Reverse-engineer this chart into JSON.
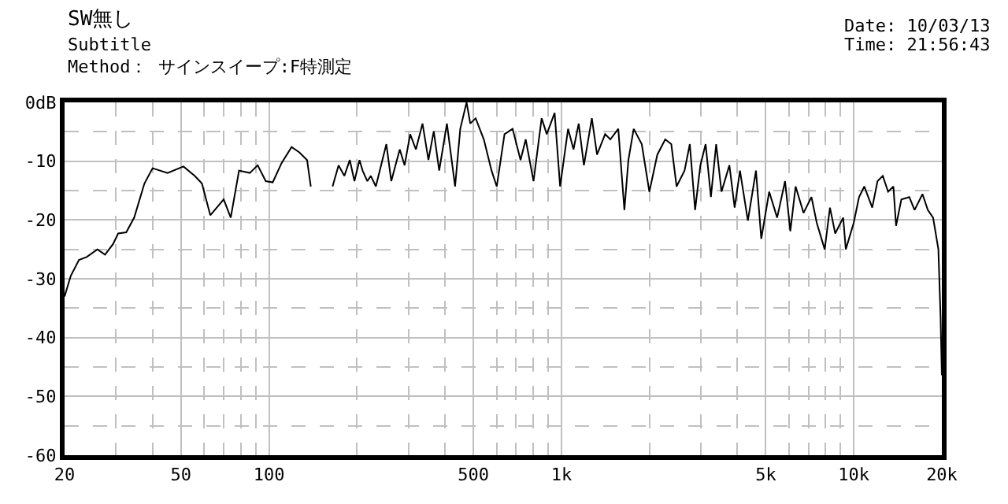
{
  "chart_data": {
    "type": "line",
    "title": "SW無し",
    "subtitle": "Subtitle",
    "annotations": [
      "Method： サインスイープ:F特測定",
      "Date: 10/03/13",
      "Time: 21:56:43"
    ],
    "x": [
      20,
      21,
      22.4,
      23.8,
      25.9,
      27.5,
      29.3,
      30.5,
      32.5,
      34.6,
      37.5,
      40,
      45,
      51,
      55.7,
      59,
      63,
      70,
      74,
      79,
      86,
      91.5,
      97.5,
      103,
      110.5,
      119.5,
      127,
      135,
      139,
      152,
      165,
      173,
      181,
      189,
      196,
      204,
      209,
      217,
      223,
      232,
      252,
      262,
      280,
      291,
      304,
      318,
      335,
      351,
      366,
      382,
      406,
      433,
      451,
      474,
      488,
      509,
      543,
      577,
      601,
      639,
      681,
      725,
      755,
      803,
      856,
      891,
      948,
      990,
      1054,
      1100,
      1146,
      1194,
      1271,
      1324,
      1411,
      1470,
      1565,
      1642,
      1695,
      1767,
      1883,
      1999,
      2128,
      2265,
      2376,
      2477,
      2637,
      2749,
      2866,
      2987,
      3113,
      3246,
      3383,
      3527,
      3754,
      3913,
      4080,
      4342,
      4628,
      4825,
      5135,
      5467,
      5819,
      6066,
      6323,
      6731,
      7164,
      7469,
      7950,
      8287,
      8639,
      9196,
      9387,
      9993,
      10419,
      10862,
      11560,
      12052,
      12565,
      13100,
      13657,
      13946,
      14539,
      15477,
      16135,
      17174,
      17905,
      18667,
      19461,
      19800,
      20000
    ],
    "series": [
      {
        "color": "#000000",
        "values": [
          -33,
          -29.5,
          -26.8,
          -26.3,
          -25,
          -25.9,
          -24.1,
          -22.3,
          -22.1,
          -19.6,
          -13.8,
          -11.2,
          -12,
          -10.9,
          -12.5,
          -13.8,
          -19.2,
          -16.5,
          -19.6,
          -11.6,
          -12,
          -10.7,
          -13.4,
          -13.6,
          -10.3,
          -7.6,
          -8.5,
          -9.8,
          -14.3,
          null,
          -14.3,
          -10.7,
          -12.5,
          -9.8,
          -13.4,
          -9.8,
          -11.6,
          -13.4,
          -12.5,
          -14.3,
          -7.1,
          -13.4,
          -8,
          -10.7,
          -5.4,
          -8,
          -3.6,
          -9.8,
          -4.9,
          -11.6,
          -3.6,
          -14.3,
          -4.5,
          0,
          -3.6,
          -2.7,
          -6.3,
          -11.6,
          -14.3,
          -5.4,
          -4.5,
          -9.8,
          -6.3,
          -13.4,
          -2.7,
          -5.4,
          -1.8,
          -14.3,
          -4.5,
          -8,
          -3.6,
          -10.7,
          -2.7,
          -8.9,
          -5.4,
          -6.3,
          -4.5,
          -18.3,
          -9.8,
          -4.5,
          -7.1,
          -15.2,
          -8.9,
          -6.3,
          -7.1,
          -14.3,
          -11.6,
          -7.1,
          -18.3,
          -10.7,
          -7.1,
          -16.1,
          -7.1,
          -15.2,
          -10.7,
          -17.9,
          -11.6,
          -20.1,
          -11.6,
          -23.2,
          -15.2,
          -19.6,
          -13.4,
          -21.9,
          -14.3,
          -18.8,
          -16.1,
          -20.5,
          -25,
          -17.9,
          -22.3,
          -19.6,
          -25,
          -20.5,
          -16.1,
          -14.3,
          -17.9,
          -13.4,
          -12.5,
          -15.2,
          -14.3,
          -21,
          -16.5,
          -16.1,
          -18.3,
          -15.6,
          -18.3,
          -19.6,
          -25,
          -36.6,
          -46.4
        ]
      }
    ],
    "xlim": [
      20,
      20000
    ],
    "ylim": [
      -60,
      0
    ],
    "log": "x",
    "grid": true,
    "marker": "none",
    "line_style": "solid",
    "xticks": [
      20,
      {
        "value": 30,
        "label": null
      },
      {
        "value": 40,
        "label": null
      },
      50,
      {
        "value": 60,
        "label": null
      },
      {
        "value": 70,
        "label": null
      },
      {
        "value": 80,
        "label": null
      },
      {
        "value": 90,
        "label": null
      },
      100,
      {
        "value": 200,
        "label": null
      },
      {
        "value": 300,
        "label": null
      },
      {
        "value": 400,
        "label": null
      },
      500,
      {
        "value": 600,
        "label": null
      },
      {
        "value": 700,
        "label": null
      },
      {
        "value": 800,
        "label": null
      },
      {
        "value": 900,
        "label": null
      },
      {
        "value": 1000,
        "label": "1k"
      },
      {
        "value": 2000,
        "label": null
      },
      {
        "value": 3000,
        "label": null
      },
      {
        "value": 4000,
        "label": null
      },
      {
        "value": 5000,
        "label": "5k"
      },
      {
        "value": 6000,
        "label": null
      },
      {
        "value": 7000,
        "label": null
      },
      {
        "value": 8000,
        "label": null
      },
      {
        "value": 9000,
        "label": null
      },
      {
        "value": 10000,
        "label": "10k"
      },
      {
        "value": 20000,
        "label": "20k"
      }
    ],
    "yticks": [
      {
        "value": 0,
        "label": "0dB"
      },
      {
        "value": -5,
        "label": null
      },
      -10,
      {
        "value": -15,
        "label": null
      },
      -20,
      {
        "value": -25,
        "label": null
      },
      -30,
      {
        "value": -35,
        "label": null
      },
      -40,
      {
        "value": -45,
        "label": null
      },
      -50,
      {
        "value": -55,
        "label": null
      },
      -60
    ]
  }
}
